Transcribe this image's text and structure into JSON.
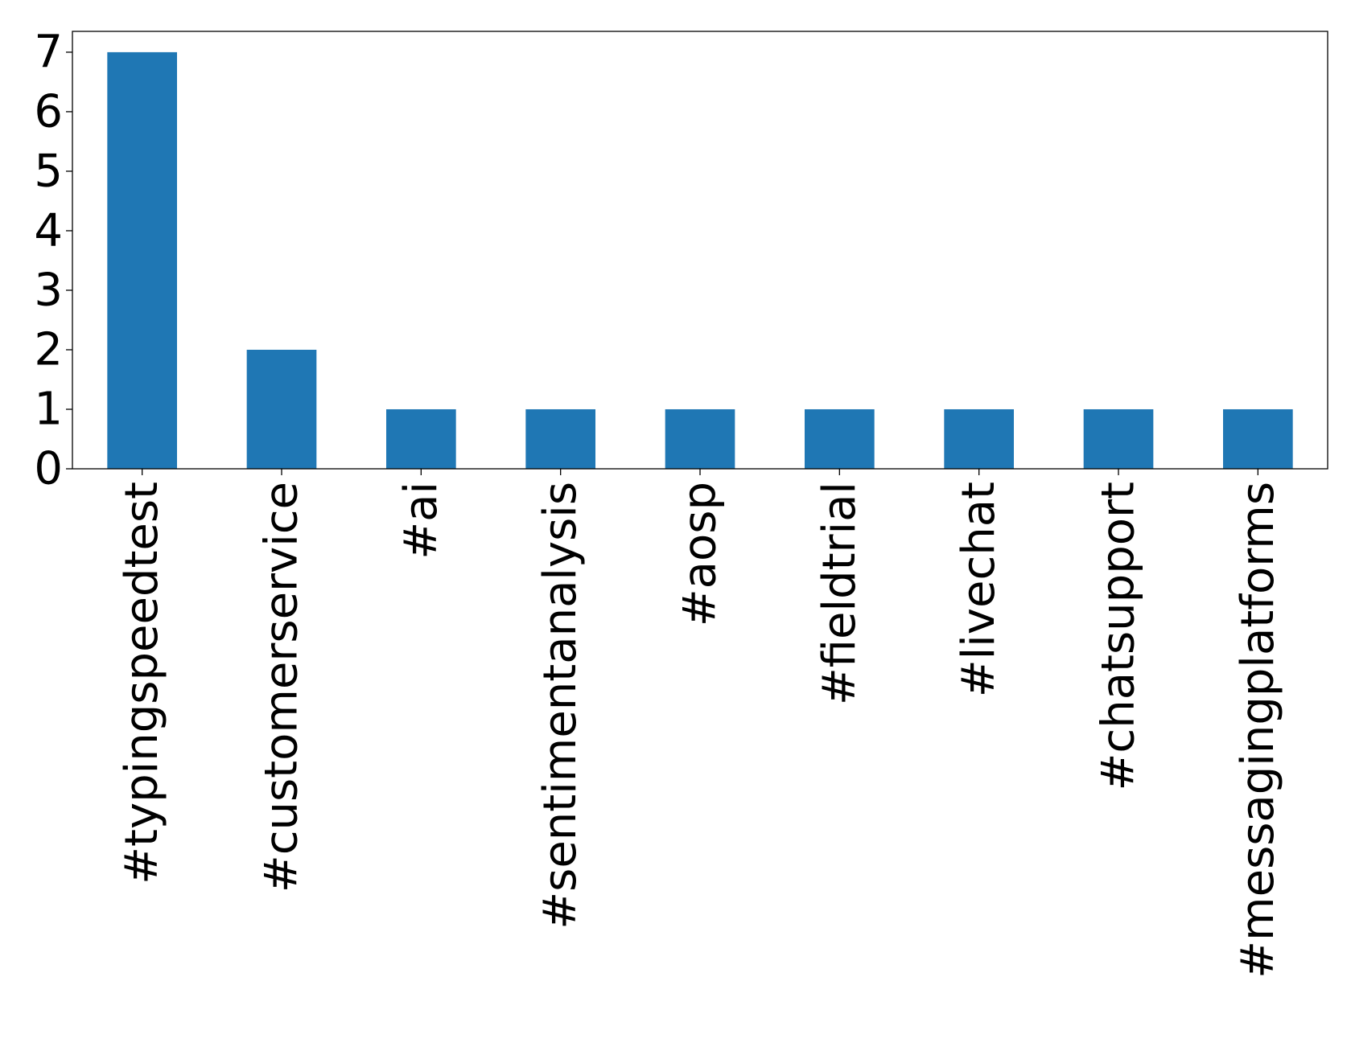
{
  "chart_data": {
    "type": "bar",
    "title": "",
    "xlabel": "",
    "ylabel": "",
    "categories": [
      "#typingspeedtest",
      "#customerservice",
      "#ai",
      "#sentimentanalysis",
      "#aosp",
      "#fieldtrial",
      "#livechat",
      "#chatsupport",
      "#messagingplatforms"
    ],
    "values": [
      7,
      2,
      1,
      1,
      1,
      1,
      1,
      1,
      1
    ],
    "ylim": [
      0,
      7.35
    ],
    "yticks": [
      0,
      1,
      2,
      3,
      4,
      5,
      6,
      7
    ],
    "grid": false,
    "legend": "none",
    "bar_color": "#1f77b4"
  }
}
